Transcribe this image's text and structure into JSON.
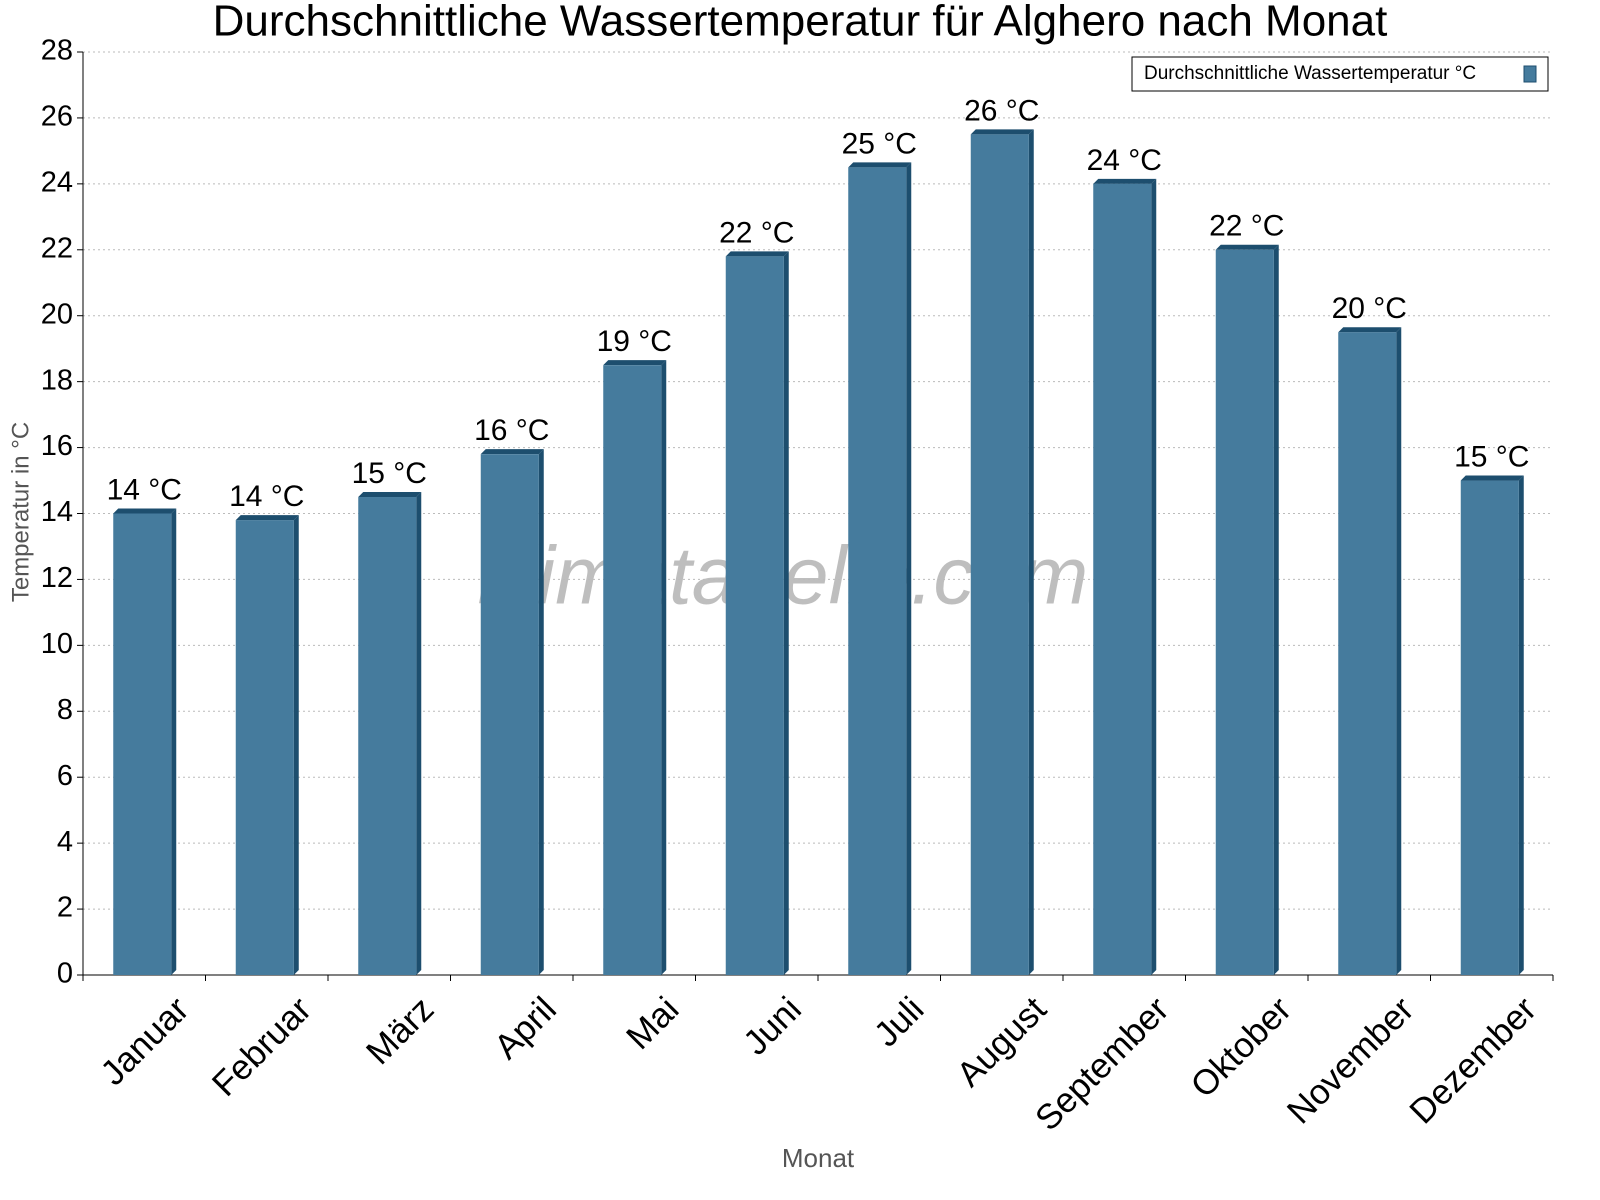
{
  "chart_data": {
    "type": "bar",
    "title": "Durchschnittliche Wassertemperatur für Alghero nach Monat",
    "x_label": "Monat",
    "y_label": "Temperatur in °C",
    "watermark": "klimatabelle.com",
    "categories": [
      "Januar",
      "Februar",
      "März",
      "April",
      "Mai",
      "Juni",
      "Juli",
      "August",
      "September",
      "Oktober",
      "November",
      "Dezember"
    ],
    "series": [
      {
        "name": "Durchschnittliche Wassertemperatur °C",
        "color": "#457b9d",
        "values": [
          14.0,
          13.8,
          14.5,
          15.8,
          18.5,
          21.8,
          24.5,
          25.5,
          24.0,
          22.0,
          19.5,
          15.0
        ],
        "value_labels": [
          "14 °C",
          "14 °C",
          "15 °C",
          "16 °C",
          "19 °C",
          "22 °C",
          "25 °C",
          "26 °C",
          "24 °C",
          "22 °C",
          "20 °C",
          "15 °C"
        ]
      }
    ],
    "ylim": [
      0,
      28
    ],
    "yticks": [
      0,
      2,
      4,
      6,
      8,
      10,
      12,
      14,
      16,
      18,
      20,
      22,
      24,
      26,
      28
    ],
    "grid": true,
    "legend": "top-right"
  }
}
